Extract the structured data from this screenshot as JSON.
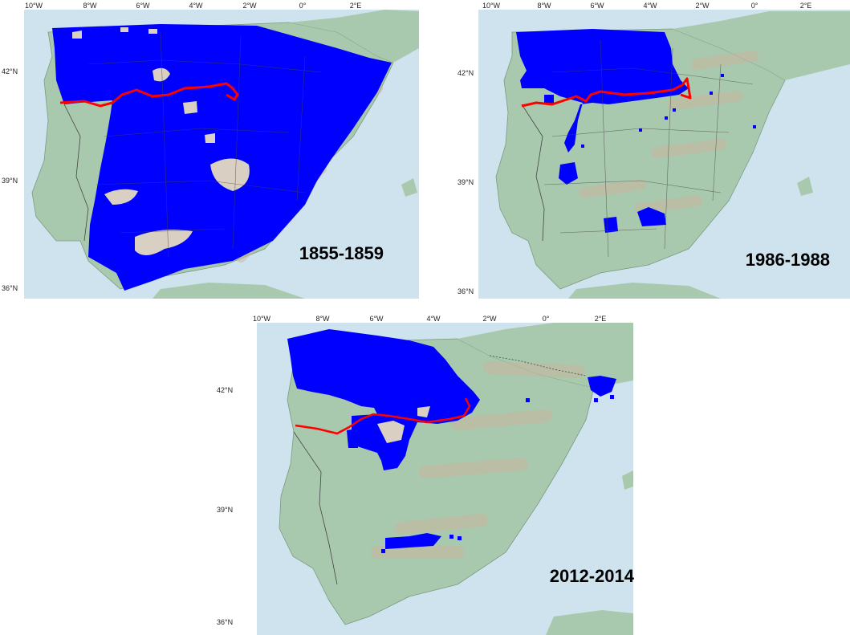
{
  "maps": [
    {
      "period": "1855-1859",
      "lon_labels": [
        "10°W",
        "8°W",
        "6°W",
        "4°W",
        "2°W",
        "0°",
        "2°E"
      ],
      "lat_labels": [
        "42°N",
        "39°N",
        "36°N"
      ]
    },
    {
      "period": "1986-1988",
      "lon_labels": [
        "10°W",
        "8°W",
        "6°W",
        "4°W",
        "2°W",
        "0°",
        "2°E"
      ],
      "lat_labels": [
        "42°N",
        "39°N",
        "36°N"
      ]
    },
    {
      "period": "2012-2014",
      "lon_labels": [
        "10°W",
        "8°W",
        "6°W",
        "4°W",
        "2°W",
        "0°",
        "2°E"
      ],
      "lat_labels": [
        "42°N",
        "39°N",
        "36°N"
      ]
    }
  ],
  "colors": {
    "sea": "#cfe3ee",
    "land": "#a9c9ae",
    "relief": "#c9b39b",
    "distribution": "#0000ff",
    "gap": "#d9d0c3",
    "boundary": "#ff0000",
    "borders": "#444444"
  }
}
